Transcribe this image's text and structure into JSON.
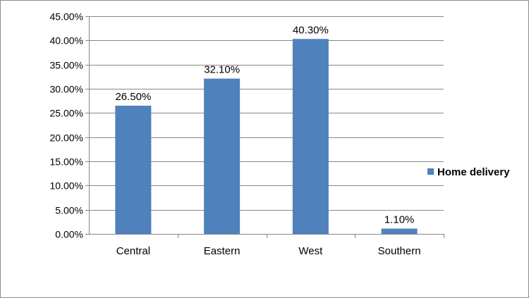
{
  "chart_data": {
    "type": "bar",
    "categories": [
      "Central",
      "Eastern",
      "West",
      "Southern"
    ],
    "series": [
      {
        "name": "Home delivery",
        "values": [
          26.5,
          32.1,
          40.3,
          1.1
        ],
        "labels": [
          "26.50%",
          "32.10%",
          "40.30%",
          "1.10%"
        ],
        "color": "#4f81bd"
      }
    ],
    "ylim": [
      0,
      45
    ],
    "y_ticks": [
      0,
      5,
      10,
      15,
      20,
      25,
      30,
      35,
      40,
      45
    ],
    "y_tick_labels": [
      "0.00%",
      "5.00%",
      "10.00%",
      "15.00%",
      "20.00%",
      "25.00%",
      "30.00%",
      "35.00%",
      "40.00%",
      "45.00%"
    ],
    "grid": true,
    "gridline_color": "#868686",
    "legend_position": "right"
  }
}
